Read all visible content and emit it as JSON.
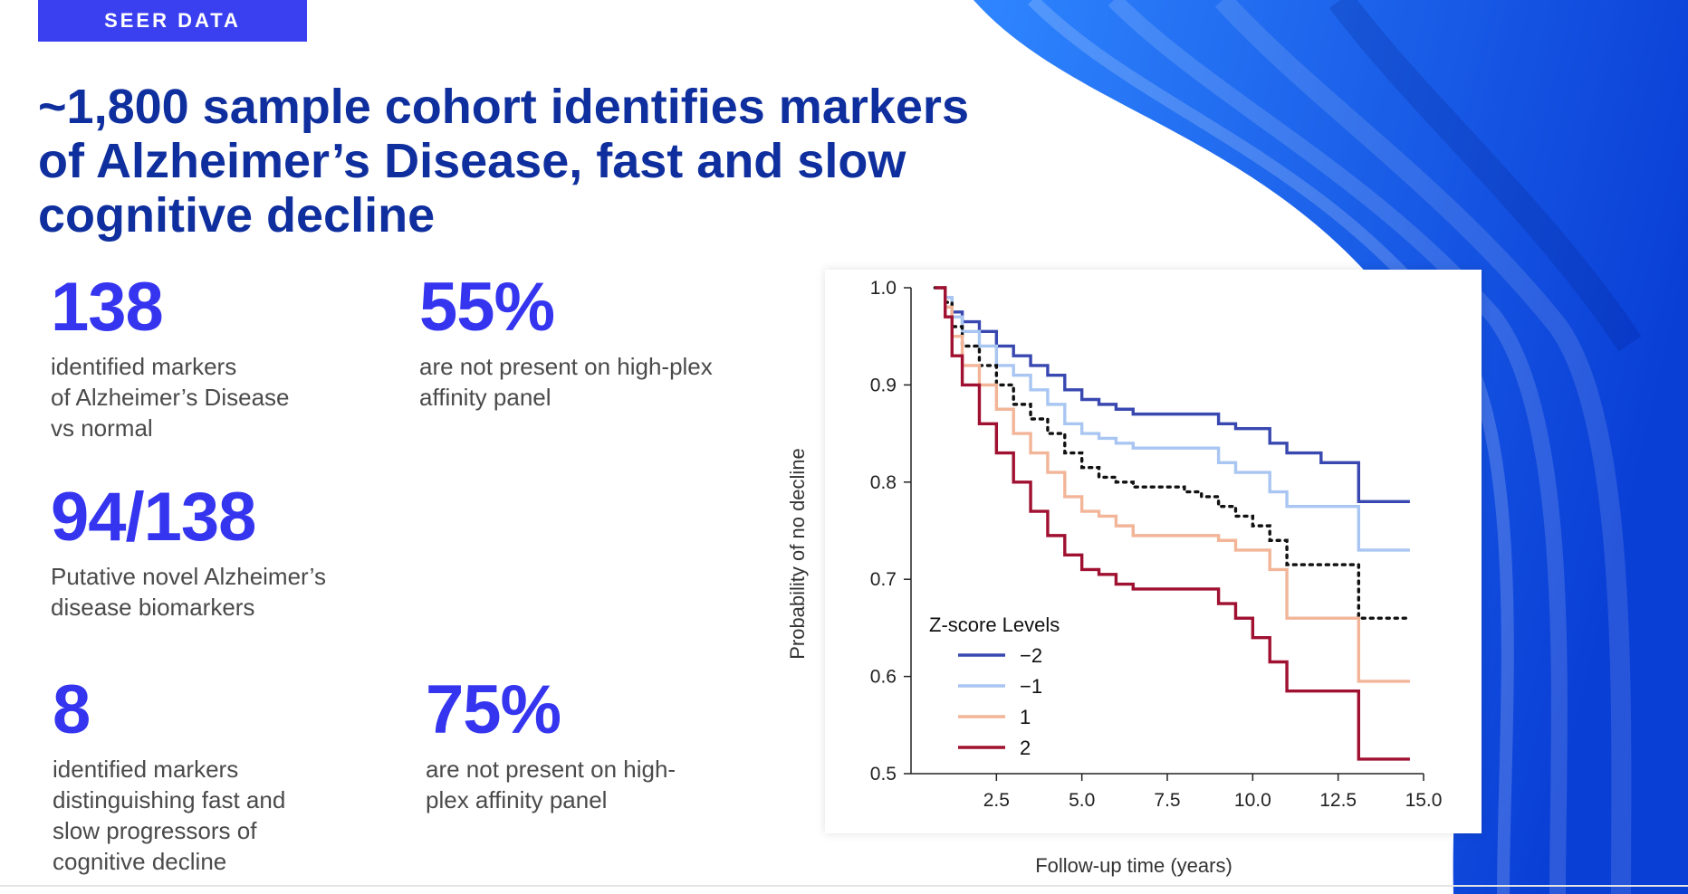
{
  "tag": "SEER DATA",
  "title_lines": [
    "~1,800 sample cohort identifies markers",
    "of Alzheimer’s Disease, fast and slow",
    "cognitive decline"
  ],
  "stats": [
    {
      "value": "138",
      "desc": "identified markers\nof Alzheimer’s Disease\nvs normal"
    },
    {
      "value": "55%",
      "desc": "are not present on high-plex\naffinity panel"
    },
    {
      "value": "94/138",
      "desc": "Putative novel Alzheimer’s\ndisease biomarkers"
    },
    {
      "value": "8",
      "desc": "identified markers\ndistinguishing fast and\nslow progressors of\ncognitive decline"
    },
    {
      "value": "75%",
      "desc": "are not present on high-\nplex affinity panel"
    }
  ],
  "colors": {
    "accent": "#3535f0",
    "title": "#0f2f9e",
    "tag_bg": "#3a3ff0",
    "wave_dark": "#0a3fd6",
    "wave_light": "#2f86ff"
  },
  "chart_data": {
    "type": "line",
    "step": true,
    "xlabel": "Follow-up time (years)",
    "ylabel": "Probability of no decline",
    "xlim": [
      0,
      15
    ],
    "ylim": [
      0.5,
      1.0
    ],
    "xticks": [
      2.5,
      5.0,
      7.5,
      10.0,
      12.5,
      15.0
    ],
    "xtick_labels": [
      "2.5",
      "5.0",
      "7.5",
      "10.0",
      "12.5",
      "15.0"
    ],
    "yticks": [
      0.5,
      0.6,
      0.7,
      0.8,
      0.9,
      1.0
    ],
    "ytick_labels": [
      "0.5",
      "0.6",
      "0.7",
      "0.8",
      "0.9",
      "1.0"
    ],
    "legend_title": "Z-score Levels",
    "legend_position": "lower-left",
    "series": [
      {
        "name": "−2",
        "color": "#3848b0",
        "dashed": false,
        "x": [
          0.7,
          1.0,
          1.2,
          1.5,
          2.0,
          2.5,
          3.0,
          3.5,
          4.0,
          4.5,
          5.0,
          5.5,
          6.0,
          6.5,
          8.0,
          9.0,
          9.5,
          10.5,
          11.0,
          12.0,
          13.1,
          14.6
        ],
        "y": [
          1.0,
          0.99,
          0.975,
          0.965,
          0.955,
          0.94,
          0.93,
          0.92,
          0.91,
          0.895,
          0.885,
          0.88,
          0.875,
          0.87,
          0.87,
          0.86,
          0.855,
          0.84,
          0.83,
          0.82,
          0.78,
          0.78
        ]
      },
      {
        "name": "−1",
        "color": "#a9c6f2",
        "dashed": false,
        "x": [
          0.7,
          1.0,
          1.2,
          1.5,
          2.0,
          2.5,
          3.0,
          3.5,
          4.0,
          4.5,
          5.0,
          5.5,
          6.0,
          6.5,
          8.0,
          9.0,
          9.5,
          10.5,
          11.0,
          13.1,
          14.6
        ],
        "y": [
          1.0,
          0.99,
          0.97,
          0.955,
          0.94,
          0.92,
          0.91,
          0.895,
          0.88,
          0.86,
          0.85,
          0.845,
          0.84,
          0.835,
          0.835,
          0.82,
          0.81,
          0.79,
          0.775,
          0.73,
          0.73
        ]
      },
      {
        "name": "",
        "color": "#111111",
        "dashed": true,
        "x": [
          0.7,
          1.0,
          1.2,
          1.5,
          2.0,
          2.5,
          3.0,
          3.5,
          4.0,
          4.5,
          5.0,
          5.5,
          6.0,
          6.5,
          8.0,
          8.5,
          9.0,
          9.5,
          10.0,
          10.5,
          11.0,
          13.1,
          14.6
        ],
        "y": [
          1.0,
          0.985,
          0.96,
          0.94,
          0.92,
          0.9,
          0.88,
          0.865,
          0.85,
          0.83,
          0.815,
          0.805,
          0.8,
          0.795,
          0.79,
          0.785,
          0.775,
          0.765,
          0.755,
          0.74,
          0.715,
          0.66,
          0.66
        ]
      },
      {
        "name": "1",
        "color": "#f2b598",
        "dashed": false,
        "x": [
          0.7,
          1.0,
          1.2,
          1.5,
          2.0,
          2.5,
          3.0,
          3.5,
          4.0,
          4.5,
          5.0,
          5.5,
          6.0,
          6.5,
          8.0,
          9.0,
          9.5,
          10.5,
          11.0,
          13.1,
          14.6
        ],
        "y": [
          1.0,
          0.98,
          0.95,
          0.92,
          0.9,
          0.875,
          0.85,
          0.83,
          0.81,
          0.785,
          0.77,
          0.765,
          0.755,
          0.745,
          0.745,
          0.74,
          0.73,
          0.71,
          0.66,
          0.595,
          0.595
        ]
      },
      {
        "name": "2",
        "color": "#a01030",
        "dashed": false,
        "x": [
          0.7,
          1.0,
          1.2,
          1.5,
          2.0,
          2.5,
          3.0,
          3.5,
          4.0,
          4.5,
          5.0,
          5.5,
          6.0,
          6.5,
          8.0,
          9.0,
          9.5,
          10.0,
          10.5,
          11.0,
          13.1,
          14.6
        ],
        "y": [
          1.0,
          0.97,
          0.93,
          0.9,
          0.86,
          0.83,
          0.8,
          0.77,
          0.745,
          0.725,
          0.71,
          0.705,
          0.695,
          0.69,
          0.69,
          0.675,
          0.66,
          0.64,
          0.615,
          0.585,
          0.515,
          0.515
        ]
      }
    ]
  }
}
